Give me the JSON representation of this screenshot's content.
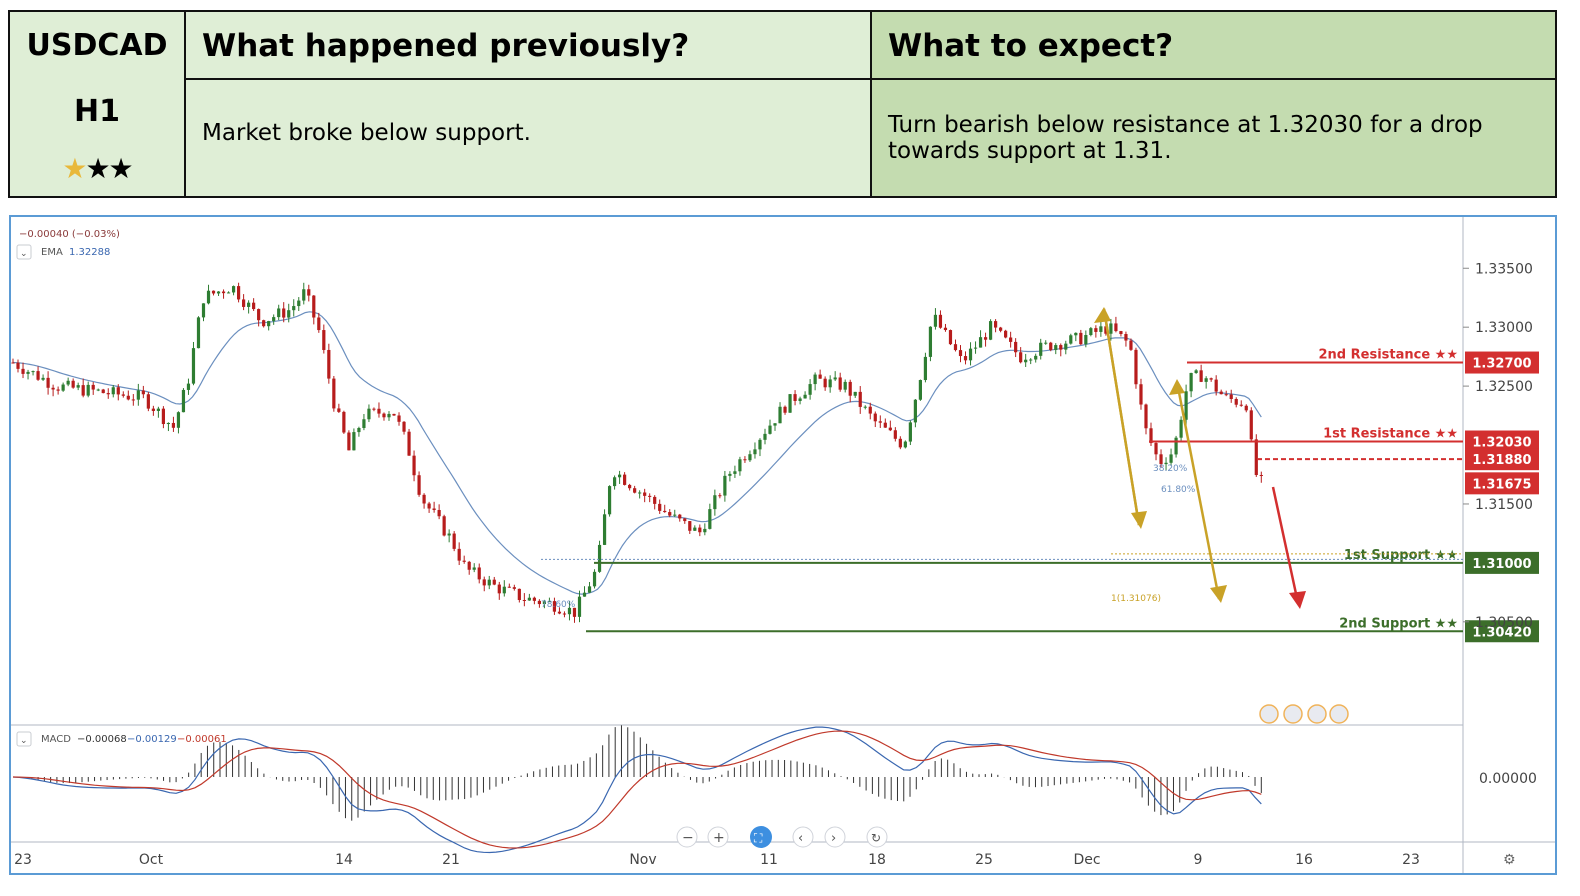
{
  "header": {
    "symbol": "USDCAD",
    "timeframe": "H1",
    "rating_stars": {
      "filled_gold": 1,
      "filled_black": 2
    },
    "previous_title": "What happened previously?",
    "previous_text": "Market broke below support.",
    "expect_title": "What to expect?",
    "expect_text": "Turn bearish below resistance at 1.32030 for a drop towards support at 1.31."
  },
  "chart_data": {
    "type": "candlestick",
    "symbol": "USDCAD",
    "timeframe": "H1",
    "legend": {
      "change": "−0.00040 (−0.03%)",
      "ema_label": "EMA",
      "ema_value": "1.32288",
      "macd_label": "MACD",
      "macd_values": [
        "−0.00068",
        "−0.00129",
        "−0.00061"
      ]
    },
    "x_tick_labels": [
      "23",
      "Oct",
      "14",
      "21",
      "Nov",
      "11",
      "18",
      "25",
      "Dec",
      "9",
      "16",
      "23"
    ],
    "y_tick_labels": [
      "1.33500",
      "1.33000",
      "1.32500",
      "1.31500",
      "1.30500"
    ],
    "ylim": [
      1.2965,
      1.3385
    ],
    "macd_axis_label": "0.00000",
    "price_path": [
      [
        0,
        1.327
      ],
      [
        0.03,
        1.325
      ],
      [
        0.06,
        1.3245
      ],
      [
        0.09,
        1.324
      ],
      [
        0.11,
        1.3215
      ],
      [
        0.12,
        1.3255
      ],
      [
        0.13,
        1.3325
      ],
      [
        0.15,
        1.3335
      ],
      [
        0.17,
        1.3305
      ],
      [
        0.19,
        1.3315
      ],
      [
        0.2,
        1.333
      ],
      [
        0.21,
        1.3295
      ],
      [
        0.22,
        1.3235
      ],
      [
        0.23,
        1.3195
      ],
      [
        0.24,
        1.3225
      ],
      [
        0.26,
        1.323
      ],
      [
        0.27,
        1.32
      ],
      [
        0.28,
        1.3155
      ],
      [
        0.3,
        1.312
      ],
      [
        0.31,
        1.3095
      ],
      [
        0.33,
        1.308
      ],
      [
        0.35,
        1.307
      ],
      [
        0.37,
        1.3065
      ],
      [
        0.385,
        1.3058
      ],
      [
        0.4,
        1.3095
      ],
      [
        0.41,
        1.318
      ],
      [
        0.43,
        1.316
      ],
      [
        0.45,
        1.314
      ],
      [
        0.47,
        1.3125
      ],
      [
        0.49,
        1.3175
      ],
      [
        0.51,
        1.3205
      ],
      [
        0.53,
        1.3235
      ],
      [
        0.55,
        1.3255
      ],
      [
        0.57,
        1.325
      ],
      [
        0.59,
        1.322
      ],
      [
        0.61,
        1.32
      ],
      [
        0.62,
        1.325
      ],
      [
        0.63,
        1.331
      ],
      [
        0.65,
        1.327
      ],
      [
        0.67,
        1.33
      ],
      [
        0.69,
        1.3275
      ],
      [
        0.71,
        1.3285
      ],
      [
        0.73,
        1.329
      ],
      [
        0.75,
        1.33
      ],
      [
        0.765,
        1.3285
      ],
      [
        0.775,
        1.3215
      ],
      [
        0.785,
        1.3185
      ],
      [
        0.795,
        1.3195
      ],
      [
        0.805,
        1.3255
      ],
      [
        0.815,
        1.326
      ],
      [
        0.83,
        1.324
      ],
      [
        0.845,
        1.3235
      ],
      [
        0.85,
        1.3178
      ],
      [
        0.855,
        1.3168
      ]
    ],
    "horizontal_levels": [
      {
        "label": "2nd Resistance ★★",
        "value": 1.327,
        "color": "#d32f2f"
      },
      {
        "label": "1st Resistance ★★",
        "value": 1.3203,
        "color": "#d32f2f"
      },
      {
        "label": "",
        "value": 1.3188,
        "color": "#d32f2f",
        "style": "dashed"
      },
      {
        "label": "",
        "value": 1.31675,
        "color": "#d32f2f",
        "style": "none"
      },
      {
        "label": "1st Support ★★",
        "value": 1.31,
        "color": "#3c6e2a"
      },
      {
        "label": "2nd Support ★★",
        "value": 1.3042,
        "color": "#3c6e2a"
      }
    ],
    "annotations": [
      "78.60%",
      "1(1.31076)",
      "38.20%",
      "61.80%"
    ],
    "colors": {
      "candle_up": "#2e7d32",
      "candle_down": "#b71c1c",
      "ema": "#6b8fbf",
      "resistance": "#d32f2f",
      "support": "#3c6e2a",
      "fib_arrows": "#c9a227",
      "forecast_arrow": "#d32f2f"
    }
  },
  "chart_tools": [
    "minus-icon",
    "plus-icon",
    "reset-scale-icon",
    "scroll-left-icon",
    "scroll-right-icon",
    "refresh-icon",
    "settings-gear-icon"
  ]
}
